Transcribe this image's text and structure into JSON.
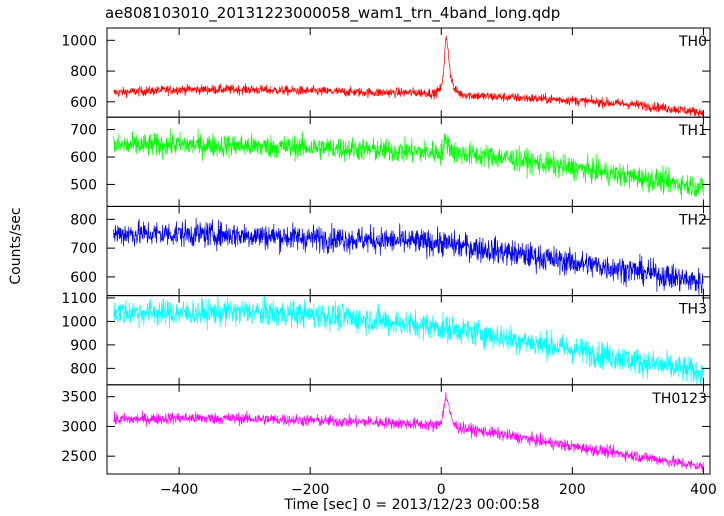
{
  "chart_data": {
    "type": "line",
    "title": "ae808103010_20131223000058_wam1_trn_4band_long.qdp",
    "xlabel": "Time [sec] 0 = 2013/12/23 00:00:58",
    "ylabel": "Counts/sec",
    "xlim": [
      -510,
      410
    ],
    "xticks": [
      -400,
      -200,
      0,
      200,
      400
    ],
    "grid": false,
    "panels": [
      {
        "name": "TH0",
        "color": "#ff0000",
        "ylim": [
          500,
          1080
        ],
        "yticks": [
          600,
          800,
          1000
        ],
        "noise": 22,
        "x": [
          -500,
          -400,
          -300,
          -200,
          -100,
          -20,
          -10,
          0,
          4,
          7,
          10,
          14,
          20,
          30,
          50,
          100,
          200,
          300,
          400
        ],
        "y": [
          660,
          680,
          680,
          670,
          660,
          660,
          650,
          690,
          820,
          1020,
          960,
          780,
          680,
          650,
          640,
          630,
          610,
          580,
          530
        ]
      },
      {
        "name": "TH1",
        "color": "#00ff00",
        "ylim": [
          420,
          745
        ],
        "yticks": [
          500,
          600,
          700
        ],
        "noise": 30,
        "x": [
          -500,
          -400,
          -300,
          -200,
          -100,
          0,
          4,
          8,
          12,
          20,
          100,
          200,
          300,
          400
        ],
        "y": [
          640,
          645,
          640,
          635,
          625,
          615,
          640,
          665,
          640,
          615,
          595,
          560,
          525,
          490
        ]
      },
      {
        "name": "TH2",
        "color": "#0000ee",
        "ylim": [
          535,
          845
        ],
        "yticks": [
          600,
          700,
          800
        ],
        "noise": 32,
        "x": [
          -500,
          -400,
          -300,
          -200,
          -100,
          0,
          100,
          200,
          300,
          400
        ],
        "y": [
          750,
          750,
          745,
          735,
          728,
          718,
          685,
          650,
          620,
          580
        ]
      },
      {
        "name": "TH3",
        "color": "#00ffff",
        "ylim": [
          730,
          1110
        ],
        "yticks": [
          800,
          900,
          1000,
          1100
        ],
        "noise": 40,
        "x": [
          -500,
          -400,
          -300,
          -200,
          -100,
          0,
          100,
          200,
          300,
          400
        ],
        "y": [
          1040,
          1035,
          1040,
          1030,
          1005,
          975,
          930,
          880,
          830,
          780
        ]
      },
      {
        "name": "TH0123",
        "color": "#ff00ff",
        "ylim": [
          2200,
          3700
        ],
        "yticks": [
          2500,
          3000,
          3500
        ],
        "noise": 70,
        "x": [
          -500,
          -400,
          -300,
          -200,
          -100,
          -20,
          -10,
          0,
          4,
          7,
          10,
          14,
          20,
          30,
          50,
          100,
          200,
          300,
          400
        ],
        "y": [
          3110,
          3140,
          3130,
          3100,
          3070,
          3030,
          3000,
          3090,
          3300,
          3520,
          3430,
          3180,
          3020,
          2970,
          2940,
          2850,
          2660,
          2500,
          2320
        ]
      }
    ]
  }
}
